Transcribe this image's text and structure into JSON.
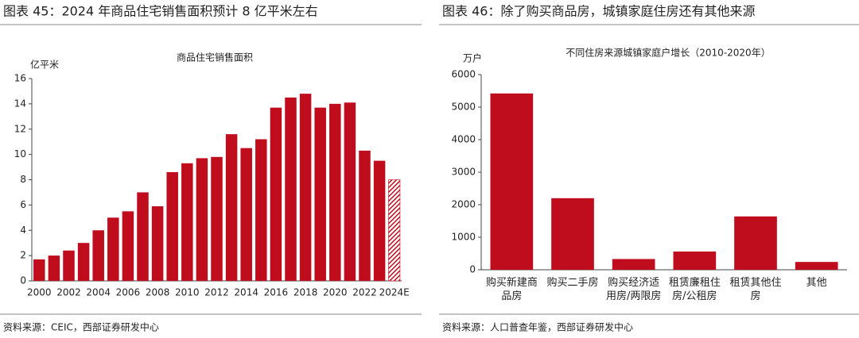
{
  "chart_data": [
    {
      "type": "bar",
      "figure_title": "图表 45：2024 年商品住宅销售面积预计 8 亿平米左右",
      "title": "商品住宅销售面积",
      "y_unit": "亿平米",
      "source": "资料来源：CEIC，西部证券研发中心",
      "categories": [
        "2000",
        null,
        "2002",
        null,
        "2004",
        null,
        "2006",
        null,
        "2008",
        null,
        "2010",
        null,
        "2012",
        null,
        "2014",
        null,
        "2016",
        null,
        "2018",
        null,
        "2020",
        null,
        "2022",
        null,
        "2024E"
      ],
      "values": [
        1.7,
        2.0,
        2.4,
        3.0,
        4.0,
        5.0,
        5.5,
        7.0,
        5.9,
        8.6,
        9.3,
        9.7,
        9.8,
        11.6,
        10.5,
        11.2,
        13.7,
        14.5,
        14.8,
        13.7,
        14.0,
        14.1,
        10.3,
        9.5,
        8.0
      ],
      "color": "#c00d1e",
      "ylim": [
        0,
        16
      ],
      "yticks": [
        0,
        2,
        4,
        6,
        8,
        10,
        12,
        14,
        16
      ],
      "grid": false
    },
    {
      "type": "bar",
      "figure_title": "图表 46：除了购买商品房，城镇家庭住房还有其他来源",
      "title": "不同住房来源城镇家庭户增长（2010-2020年）",
      "y_unit": "万户",
      "source": "资料来源：人口普查年鉴，西部证券研发中心",
      "categories": [
        "购买新建商品房",
        "购买二手房",
        "购买经济适用房/两限房",
        "租赁廉租住房/公租房",
        "租赁其他住房",
        "其他"
      ],
      "values": [
        5420,
        2200,
        330,
        560,
        1640,
        240
      ],
      "color": "#c00d1e",
      "ylim": [
        0,
        6000
      ],
      "yticks": [
        0,
        1000,
        2000,
        3000,
        4000,
        5000,
        6000
      ],
      "grid": false
    }
  ]
}
